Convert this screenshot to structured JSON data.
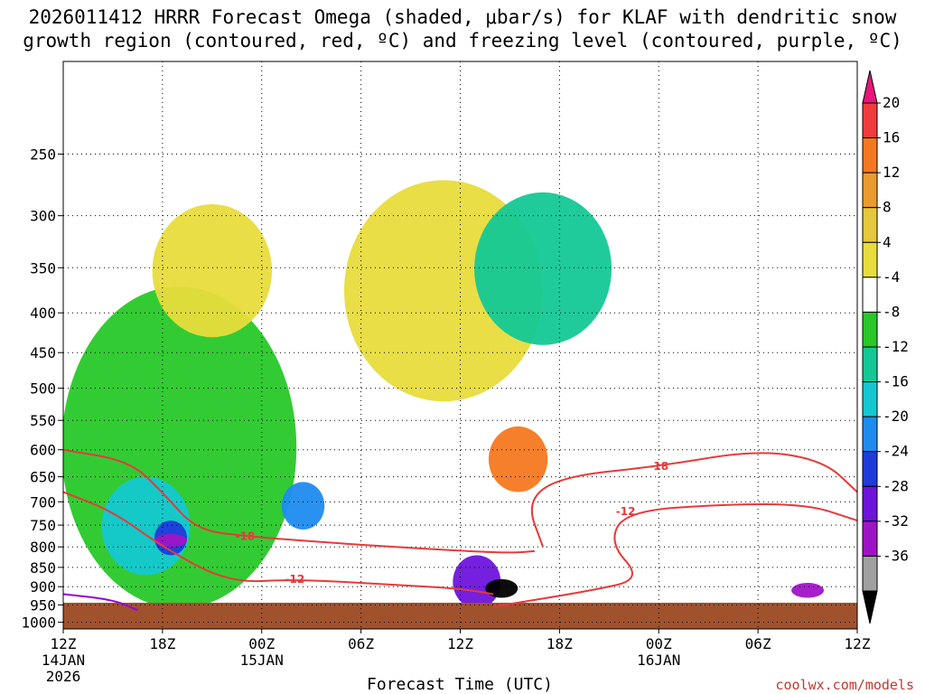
{
  "chart_data": {
    "type": "heatmap",
    "title": "2026011412 HRRR Forecast Omega (shaded, μbar/s) for KLAF with dendritic snow\ngrowth region (contoured, red, ºC) and freezing level (contoured, purple, ºC)",
    "xlabel": "Forecast Time (UTC)",
    "ylabel": "",
    "credit": "coolwx.com/models",
    "x_ticks": [
      {
        "label": "12Z",
        "sub": "14JAN",
        "sub2": "2026",
        "hour": 0
      },
      {
        "label": "18Z",
        "sub": "",
        "sub2": "",
        "hour": 6
      },
      {
        "label": "00Z",
        "sub": "15JAN",
        "sub2": "",
        "hour": 12
      },
      {
        "label": "06Z",
        "sub": "",
        "sub2": "",
        "hour": 18
      },
      {
        "label": "12Z",
        "sub": "",
        "sub2": "",
        "hour": 24
      },
      {
        "label": "18Z",
        "sub": "",
        "sub2": "",
        "hour": 30
      },
      {
        "label": "00Z",
        "sub": "16JAN",
        "sub2": "",
        "hour": 36
      },
      {
        "label": "06Z",
        "sub": "",
        "sub2": "",
        "hour": 42
      },
      {
        "label": "12Z",
        "sub": "",
        "sub2": "",
        "hour": 48
      }
    ],
    "xlim": [
      0,
      48
    ],
    "y_ticks": [
      250,
      300,
      350,
      400,
      450,
      500,
      550,
      600,
      650,
      700,
      750,
      800,
      850,
      900,
      950,
      1000
    ],
    "ylim_hpa": [
      1020,
      190
    ],
    "colorbar": {
      "labels": [
        "20",
        "16",
        "12",
        "8",
        "4",
        "-4",
        "-8",
        "-12",
        "-16",
        "-20",
        "-24",
        "-28",
        "-32",
        "-36"
      ],
      "colors": [
        "#e8157a",
        "#f03c3c",
        "#f57820",
        "#eb9b2d",
        "#e6c83c",
        "#e8dc3c",
        "#ffffff",
        "#28c828",
        "#14c896",
        "#14c8d2",
        "#1e8cf0",
        "#1e3cdc",
        "#6e14dc",
        "#a014c8",
        "#a0a0a0",
        "#000000"
      ]
    },
    "omega_regions": [
      {
        "level": -4,
        "hour": 7,
        "p_top": 370,
        "p_bot": 960
      },
      {
        "level": 4,
        "hour": 9,
        "p_top": 290,
        "p_bot": 430
      },
      {
        "level": -12,
        "hour": 5,
        "p_top": 650,
        "p_bot": 870
      },
      {
        "level": -20,
        "hour": 6.5,
        "p_top": 740,
        "p_bot": 820
      },
      {
        "level": -28,
        "hour": 6.5,
        "p_top": 770,
        "p_bot": 800
      },
      {
        "level": -16,
        "hour": 14.5,
        "p_top": 660,
        "p_bot": 760
      },
      {
        "level": 4,
        "hour": 23,
        "p_top": 270,
        "p_bot": 520
      },
      {
        "level": 16,
        "hour": 27.5,
        "p_top": 560,
        "p_bot": 680
      },
      {
        "level": -24,
        "hour": 25,
        "p_top": 820,
        "p_bot": 960
      },
      {
        "level": -36,
        "hour": 26.5,
        "p_top": 880,
        "p_bot": 930
      },
      {
        "level": -8,
        "hour": 29,
        "p_top": 280,
        "p_bot": 440
      },
      {
        "level": -28,
        "hour": 45,
        "p_top": 890,
        "p_bot": 930
      }
    ],
    "dgz_contours": [
      {
        "label": "-18",
        "points": [
          [
            0,
            600
          ],
          [
            4,
            620
          ],
          [
            6,
            680
          ],
          [
            8,
            760
          ],
          [
            11,
            775
          ],
          [
            16,
            790
          ],
          [
            22,
            805
          ],
          [
            27,
            815
          ],
          [
            28.5,
            810
          ]
        ]
      },
      {
        "label": "-12",
        "points": [
          [
            0,
            680
          ],
          [
            3,
            720
          ],
          [
            6,
            800
          ],
          [
            10,
            890
          ],
          [
            14,
            880
          ],
          [
            20,
            895
          ],
          [
            24,
            905
          ],
          [
            26,
            920
          ]
        ]
      },
      {
        "label": "-18",
        "points": [
          [
            29,
            800
          ],
          [
            28,
            700
          ],
          [
            30,
            650
          ],
          [
            36,
            630
          ],
          [
            42,
            600
          ],
          [
            46,
            620
          ],
          [
            48,
            680
          ]
        ]
      },
      {
        "label": "-12",
        "points": [
          [
            26,
            955
          ],
          [
            32,
            910
          ],
          [
            35,
            880
          ],
          [
            33,
            790
          ],
          [
            34,
            720
          ],
          [
            40,
            705
          ],
          [
            45,
            705
          ],
          [
            48,
            740
          ]
        ]
      }
    ],
    "freezing_level": {
      "label": "",
      "points": [
        [
          0,
          920
        ],
        [
          3,
          935
        ],
        [
          4.5,
          965
        ]
      ]
    }
  }
}
